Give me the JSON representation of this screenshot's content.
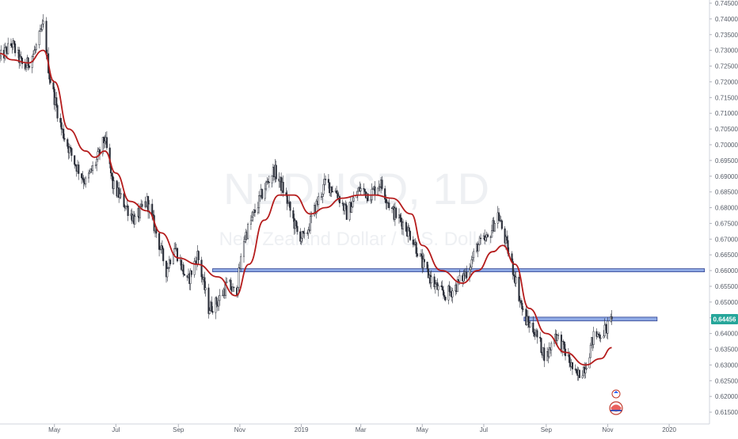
{
  "chart_data": {
    "type": "candlestick",
    "watermark": {
      "symbol": "NZDUSD, 1D",
      "description": "New Zealand Dollar / U.S. Dollar"
    },
    "y_axis": {
      "side": "right",
      "ylim": [
        0.6125,
        0.745
      ],
      "ticks": [
        "0.74500",
        "0.74000",
        "0.73500",
        "0.73000",
        "0.72500",
        "0.72000",
        "0.71500",
        "0.71000",
        "0.70500",
        "0.70000",
        "0.69500",
        "0.69000",
        "0.68500",
        "0.68000",
        "0.67500",
        "0.67000",
        "0.66500",
        "0.66000",
        "0.65500",
        "0.65000",
        "0.64500",
        "0.64000",
        "0.63500",
        "0.63000",
        "0.62500",
        "0.62000",
        "0.61500"
      ]
    },
    "x_axis": {
      "ticks": [
        {
          "label": "May",
          "date": "2018-05-01"
        },
        {
          "label": "Jul",
          "date": "2018-07-01"
        },
        {
          "label": "Sep",
          "date": "2018-09-01"
        },
        {
          "label": "Nov",
          "date": "2018-11-01"
        },
        {
          "label": "2019",
          "date": "2019-01-01"
        },
        {
          "label": "Mar",
          "date": "2019-03-01"
        },
        {
          "label": "May",
          "date": "2019-05-01"
        },
        {
          "label": "Jul",
          "date": "2019-07-01"
        },
        {
          "label": "Sep",
          "date": "2019-09-01"
        },
        {
          "label": "Nov",
          "date": "2019-11-01"
        },
        {
          "label": "2020",
          "date": "2020-01-01"
        }
      ],
      "range": [
        "2018-03-08",
        "2020-02-10"
      ]
    },
    "price_path": [
      [
        "2018-03-08",
        0.7275
      ],
      [
        "2018-03-20",
        0.732
      ],
      [
        "2018-04-01",
        0.724
      ],
      [
        "2018-04-12",
        0.73
      ],
      [
        "2018-04-20",
        0.738
      ],
      [
        "2018-04-26",
        0.722
      ],
      [
        "2018-05-08",
        0.705
      ],
      [
        "2018-05-20",
        0.695
      ],
      [
        "2018-06-01",
        0.688
      ],
      [
        "2018-06-12",
        0.695
      ],
      [
        "2018-06-20",
        0.702
      ],
      [
        "2018-06-28",
        0.687
      ],
      [
        "2018-07-10",
        0.681
      ],
      [
        "2018-07-20",
        0.676
      ],
      [
        "2018-08-01",
        0.682
      ],
      [
        "2018-08-10",
        0.672
      ],
      [
        "2018-08-20",
        0.66
      ],
      [
        "2018-08-28",
        0.668
      ],
      [
        "2018-09-10",
        0.656
      ],
      [
        "2018-09-20",
        0.665
      ],
      [
        "2018-10-01",
        0.648
      ],
      [
        "2018-10-10",
        0.65
      ],
      [
        "2018-10-20",
        0.656
      ],
      [
        "2018-10-28",
        0.652
      ],
      [
        "2018-11-05",
        0.67
      ],
      [
        "2018-11-15",
        0.678
      ],
      [
        "2018-11-25",
        0.686
      ],
      [
        "2018-12-05",
        0.692
      ],
      [
        "2018-12-15",
        0.685
      ],
      [
        "2018-12-28",
        0.672
      ],
      [
        "2019-01-04",
        0.67
      ],
      [
        "2019-01-15",
        0.68
      ],
      [
        "2019-01-25",
        0.688
      ],
      [
        "2019-02-05",
        0.685
      ],
      [
        "2019-02-15",
        0.678
      ],
      [
        "2019-02-28",
        0.686
      ],
      [
        "2019-03-10",
        0.684
      ],
      [
        "2019-03-20",
        0.688
      ],
      [
        "2019-04-01",
        0.679
      ],
      [
        "2019-04-12",
        0.675
      ],
      [
        "2019-04-22",
        0.67
      ],
      [
        "2019-05-01",
        0.662
      ],
      [
        "2019-05-12",
        0.656
      ],
      [
        "2019-05-22",
        0.652
      ],
      [
        "2019-06-01",
        0.654
      ],
      [
        "2019-06-15",
        0.66
      ],
      [
        "2019-06-25",
        0.668
      ],
      [
        "2019-07-05",
        0.67
      ],
      [
        "2019-07-15",
        0.678
      ],
      [
        "2019-07-22",
        0.67
      ],
      [
        "2019-08-01",
        0.658
      ],
      [
        "2019-08-10",
        0.645
      ],
      [
        "2019-08-20",
        0.641
      ],
      [
        "2019-09-01",
        0.632
      ],
      [
        "2019-09-10",
        0.64
      ],
      [
        "2019-09-20",
        0.634
      ],
      [
        "2019-10-01",
        0.626
      ],
      [
        "2019-10-10",
        0.63
      ],
      [
        "2019-10-18",
        0.639
      ],
      [
        "2019-10-25",
        0.64
      ],
      [
        "2019-11-01",
        0.642
      ],
      [
        "2019-11-05",
        0.6445
      ]
    ],
    "moving_average": {
      "color": "#b51c1c",
      "points": [
        [
          "2018-03-08",
          0.729
        ],
        [
          "2018-03-20",
          0.727
        ],
        [
          "2018-04-05",
          0.726
        ],
        [
          "2018-04-20",
          0.73
        ],
        [
          "2018-05-01",
          0.72
        ],
        [
          "2018-05-15",
          0.705
        ],
        [
          "2018-06-01",
          0.698
        ],
        [
          "2018-06-10",
          0.696
        ],
        [
          "2018-06-20",
          0.698
        ],
        [
          "2018-07-01",
          0.691
        ],
        [
          "2018-07-15",
          0.682
        ],
        [
          "2018-08-01",
          0.679
        ],
        [
          "2018-08-15",
          0.672
        ],
        [
          "2018-09-01",
          0.664
        ],
        [
          "2018-09-20",
          0.662
        ],
        [
          "2018-10-10",
          0.658
        ],
        [
          "2018-10-28",
          0.652
        ],
        [
          "2018-11-10",
          0.662
        ],
        [
          "2018-11-25",
          0.676
        ],
        [
          "2018-12-10",
          0.684
        ],
        [
          "2018-12-25",
          0.684
        ],
        [
          "2019-01-10",
          0.678
        ],
        [
          "2019-01-25",
          0.68
        ],
        [
          "2019-02-10",
          0.683
        ],
        [
          "2019-02-28",
          0.684
        ],
        [
          "2019-03-15",
          0.684
        ],
        [
          "2019-04-01",
          0.683
        ],
        [
          "2019-04-20",
          0.678
        ],
        [
          "2019-05-01",
          0.668
        ],
        [
          "2019-05-20",
          0.66
        ],
        [
          "2019-06-10",
          0.656
        ],
        [
          "2019-06-25",
          0.66
        ],
        [
          "2019-07-10",
          0.666
        ],
        [
          "2019-07-20",
          0.668
        ],
        [
          "2019-08-01",
          0.662
        ],
        [
          "2019-08-15",
          0.648
        ],
        [
          "2019-09-01",
          0.64
        ],
        [
          "2019-09-20",
          0.634
        ],
        [
          "2019-10-10",
          0.63
        ],
        [
          "2019-10-25",
          0.632
        ],
        [
          "2019-11-05",
          0.6355
        ]
      ]
    },
    "zones": [
      {
        "date_from": "2018-10-05",
        "date_to": "2020-02-05",
        "price_low": 0.6596,
        "price_high": 0.6606,
        "color": "#7b9be0"
      },
      {
        "date_from": "2019-08-10",
        "date_to": "2019-12-20",
        "price_low": 0.644,
        "price_high": 0.6452,
        "color": "#7b9be0"
      }
    ],
    "last_price": {
      "label": "0.64456",
      "value": 0.64456,
      "color": "#26a69a"
    }
  }
}
